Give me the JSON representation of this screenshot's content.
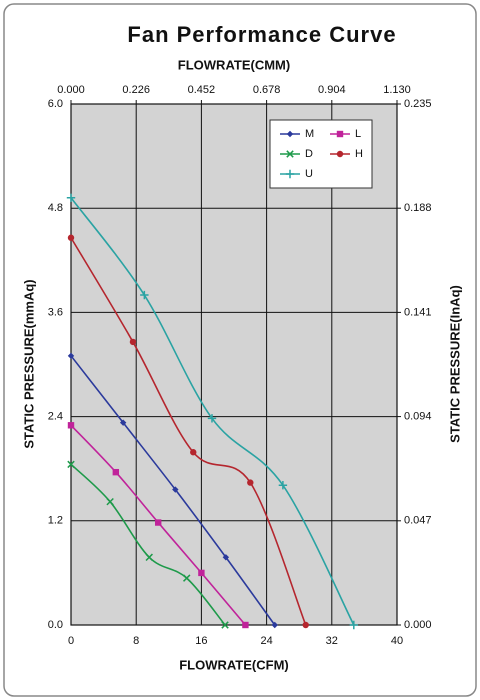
{
  "chart_data": {
    "type": "line",
    "title": "Fan Performance Curve",
    "x2label": "FLOWRATE(CMM)",
    "xlabel": "FLOWRATE(CFM)",
    "ylabel": "STATIC PRESSURE(mmAq)",
    "y2label": "STATIC PRESSURE(InAq)",
    "xlim": [
      0,
      40
    ],
    "xticks": [
      0,
      8,
      16,
      24,
      32,
      40
    ],
    "x2lim": [
      0,
      1.13
    ],
    "x2ticks": [
      {
        "value": 0,
        "label": "0.000"
      },
      0.226,
      0.452,
      0.678,
      0.904,
      {
        "value": 1.13,
        "label": "1.130"
      }
    ],
    "ylim": [
      0,
      6
    ],
    "yticks": [
      {
        "value": 0,
        "label": "0.0"
      },
      1.2,
      2.4,
      3.6,
      4.8,
      {
        "value": 6,
        "label": "6.0"
      }
    ],
    "y2lim": [
      0,
      0.235
    ],
    "y2ticks": [
      {
        "value": 0,
        "label": "0.000"
      },
      0.047,
      0.094,
      0.141,
      0.188,
      0.235
    ],
    "grid": true,
    "legend": "upper right",
    "series": [
      {
        "name": "M",
        "color": "#2b3a9c",
        "marker": "diamond",
        "x": [
          0,
          6.4,
          12.8,
          19,
          25
        ],
        "values": [
          3.1,
          2.33,
          1.56,
          0.78,
          0
        ]
      },
      {
        "name": "L",
        "color": "#c0239a",
        "marker": "square",
        "x": [
          0,
          5.5,
          10.7,
          16,
          21.4
        ],
        "values": [
          2.3,
          1.76,
          1.18,
          0.6,
          0
        ]
      },
      {
        "name": "D",
        "color": "#1e9a4a",
        "marker": "x",
        "x": [
          0,
          4.8,
          9.6,
          14.2,
          18.9
        ],
        "values": [
          1.85,
          1.42,
          0.78,
          0.54,
          0
        ]
      },
      {
        "name": "H",
        "color": "#b5262e",
        "marker": "circle",
        "x": [
          0,
          7.6,
          15,
          22,
          28.8
        ],
        "values": [
          4.46,
          3.26,
          1.99,
          1.64,
          0
        ]
      },
      {
        "name": "U",
        "color": "#2aa3a3",
        "marker": "plus",
        "x": [
          0,
          9,
          17.3,
          26,
          34.7
        ],
        "values": [
          4.92,
          3.8,
          2.38,
          1.61,
          0
        ]
      }
    ]
  }
}
